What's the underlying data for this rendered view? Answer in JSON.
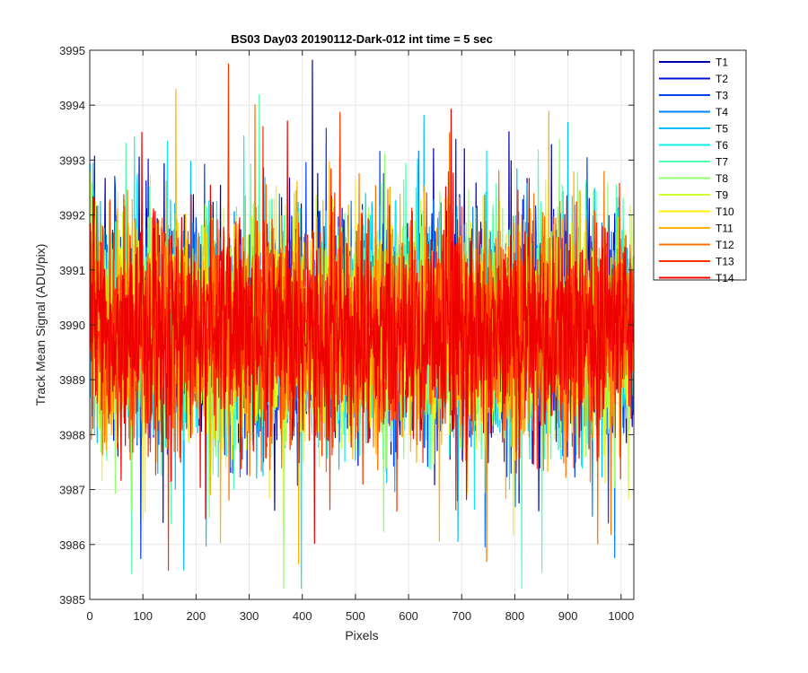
{
  "chart_data": {
    "type": "line",
    "title": "BS03 Day03 20190112-Dark-012 int time = 5 sec",
    "xlabel": "Pixels",
    "ylabel": "Track Mean Signal (ADU/pix)",
    "xlim": [
      0,
      1024
    ],
    "ylim": [
      3985,
      3995
    ],
    "xticks": [
      0,
      100,
      200,
      300,
      400,
      500,
      600,
      700,
      800,
      900,
      1000
    ],
    "yticks": [
      3985,
      3986,
      3987,
      3988,
      3989,
      3990,
      3991,
      3992,
      3993,
      3994,
      3995
    ],
    "grid": true,
    "legend_position": "outside-top-right",
    "noise_model": {
      "n_points": 1024,
      "mean": 3989.9,
      "typical_min": 3988.0,
      "typical_max": 3992.5,
      "extreme_min": 3985.2,
      "extreme_max": 3994.9
    },
    "series": [
      {
        "name": "T1",
        "color": "#0000aa"
      },
      {
        "name": "T2",
        "color": "#0010d9"
      },
      {
        "name": "T3",
        "color": "#0040ff"
      },
      {
        "name": "T4",
        "color": "#0080ff"
      },
      {
        "name": "T5",
        "color": "#00bfff"
      },
      {
        "name": "T6",
        "color": "#10efef"
      },
      {
        "name": "T7",
        "color": "#50ffaf"
      },
      {
        "name": "T8",
        "color": "#8fff70"
      },
      {
        "name": "T9",
        "color": "#cfff30"
      },
      {
        "name": "T10",
        "color": "#ffef00"
      },
      {
        "name": "T11",
        "color": "#ffb000"
      },
      {
        "name": "T12",
        "color": "#ff7000"
      },
      {
        "name": "T13",
        "color": "#ff3000"
      },
      {
        "name": "T14",
        "color": "#ee0000"
      }
    ]
  }
}
